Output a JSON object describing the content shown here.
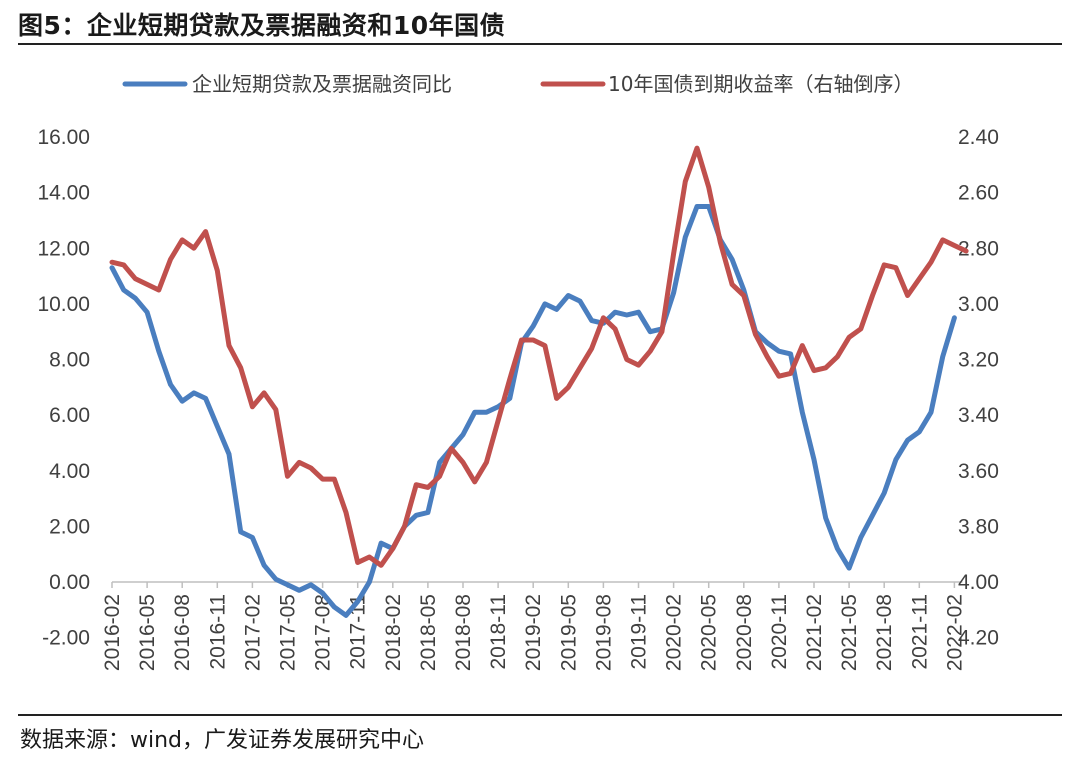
{
  "figure": {
    "title": "图5：企业短期贷款及票据融资和10年国债",
    "source": "数据来源：wind，广发证券发展研究中心"
  },
  "colors": {
    "loans": "#4a7ebf",
    "bond": "#c0504d",
    "axis": "#bfbfbf",
    "text": "#404040"
  },
  "chart_data": {
    "type": "line",
    "title": "企业短期贷款及票据融资和10年国债",
    "x_ticks": [
      "2016-02",
      "2016-05",
      "2016-08",
      "2016-11",
      "2017-02",
      "2017-05",
      "2017-08",
      "2017-11",
      "2018-02",
      "2018-05",
      "2018-08",
      "2018-11",
      "2019-02",
      "2019-05",
      "2019-08",
      "2019-11",
      "2020-02",
      "2020-05",
      "2020-08",
      "2020-11",
      "2021-02",
      "2021-05",
      "2021-08",
      "2021-11",
      "2022-02"
    ],
    "y_left": {
      "min": -2,
      "max": 16,
      "ticks": [
        "-2.00",
        "0.00",
        "2.00",
        "4.00",
        "6.00",
        "8.00",
        "10.00",
        "12.00",
        "14.00",
        "16.00"
      ]
    },
    "y_right": {
      "min": 2.4,
      "max": 4.2,
      "inverted": true,
      "ticks": [
        "2.40",
        "2.60",
        "2.80",
        "3.00",
        "3.20",
        "3.40",
        "3.60",
        "3.80",
        "4.00",
        "4.20"
      ]
    },
    "legend": [
      "企业短期贷款及票据融资同比",
      "10年国债到期收益率（右轴倒序）"
    ],
    "series": [
      {
        "name": "企业短期贷款及票据融资同比",
        "axis": "left",
        "start": "2016-02",
        "values": [
          11.3,
          10.5,
          10.2,
          9.7,
          8.3,
          7.1,
          6.5,
          6.8,
          6.6,
          5.6,
          4.6,
          1.8,
          1.6,
          0.6,
          0.1,
          -0.1,
          -0.3,
          -0.1,
          -0.4,
          -0.9,
          -1.2,
          -0.7,
          0.0,
          1.4,
          1.2,
          2.0,
          2.4,
          2.5,
          4.3,
          4.8,
          5.3,
          6.1,
          6.1,
          6.3,
          6.6,
          8.6,
          9.2,
          10.0,
          9.8,
          10.3,
          10.1,
          9.4,
          9.3,
          9.7,
          9.6,
          9.7,
          9.0,
          9.1,
          10.4,
          12.4,
          13.5,
          13.5,
          12.3,
          11.6,
          10.5,
          9.0,
          8.6,
          8.3,
          8.2,
          6.1,
          4.4,
          2.3,
          1.2,
          0.5,
          1.6,
          2.4,
          3.2,
          4.4,
          5.1,
          5.4,
          6.1,
          8.1,
          9.5
        ]
      },
      {
        "name": "10年国债到期收益率（右轴倒序）",
        "axis": "right",
        "start": "2016-02",
        "values": [
          2.85,
          2.86,
          2.91,
          2.93,
          2.95,
          2.84,
          2.77,
          2.8,
          2.74,
          2.88,
          3.15,
          3.23,
          3.37,
          3.32,
          3.38,
          3.62,
          3.57,
          3.59,
          3.63,
          3.63,
          3.75,
          3.93,
          3.91,
          3.94,
          3.88,
          3.8,
          3.65,
          3.66,
          3.62,
          3.52,
          3.57,
          3.64,
          3.57,
          3.42,
          3.27,
          3.13,
          3.13,
          3.15,
          3.34,
          3.3,
          3.23,
          3.16,
          3.05,
          3.09,
          3.2,
          3.22,
          3.17,
          3.1,
          2.82,
          2.56,
          2.44,
          2.58,
          2.78,
          2.93,
          2.97,
          3.11,
          3.19,
          3.26,
          3.25,
          3.15,
          3.24,
          3.23,
          3.19,
          3.12,
          3.09,
          2.97,
          2.86,
          2.87,
          2.97,
          2.91,
          2.85,
          2.77,
          2.79,
          2.81
        ]
      }
    ]
  }
}
